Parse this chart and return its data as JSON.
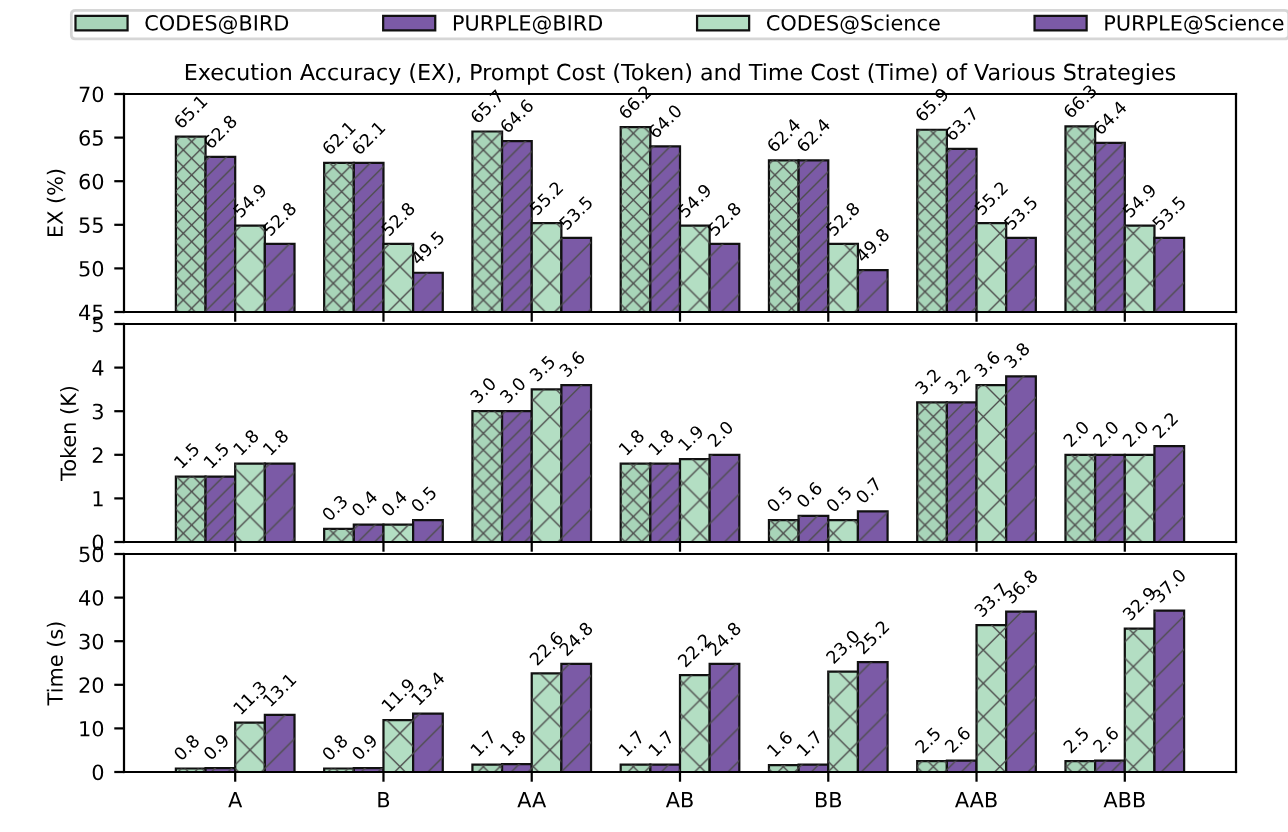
{
  "chart_data": [
    {
      "type": "bar",
      "title": "Execution Accuracy (EX), Prompt Cost (Token) and Time Cost (Time) of Various Strategies",
      "ylabel": "EX (%)",
      "categories": [
        null,
        null,
        null,
        null,
        null,
        null,
        null
      ],
      "ylim": [
        45,
        70
      ],
      "yticks": [
        45,
        50,
        55,
        60,
        65,
        70
      ],
      "tick_labels": "y",
      "legend": "top",
      "grid": false,
      "series": [
        {
          "name": "CODES@BIRD",
          "color": "#a8d5b9",
          "values": [
            65.1,
            62.1,
            65.7,
            66.2,
            62.4,
            65.9,
            66.3
          ],
          "value_labels": [
            "65.1",
            "62.1",
            "65.7",
            "66.2",
            "62.4",
            "65.9",
            "66.3"
          ]
        },
        {
          "name": "PURPLE@BIRD",
          "color": "#7b5aa6",
          "values": [
            62.8,
            62.1,
            64.6,
            64.0,
            62.4,
            63.7,
            64.4
          ],
          "value_labels": [
            "62.8",
            "62.1",
            "64.6",
            "64.0",
            "62.4",
            "63.7",
            "64.4"
          ]
        },
        {
          "name": "CODES@Science",
          "color": "#b3dec3",
          "values": [
            54.9,
            52.8,
            55.2,
            54.9,
            52.8,
            55.2,
            54.9
          ],
          "value_labels": [
            "54.9",
            "52.8",
            "55.2",
            "54.9",
            "52.8",
            "55.2",
            "54.9"
          ]
        },
        {
          "name": "PURPLE@Science",
          "color": "#7b5aa6",
          "values": [
            52.8,
            49.5,
            53.5,
            52.8,
            49.8,
            53.5,
            53.5
          ],
          "value_labels": [
            "52.8",
            "49.5",
            "53.5",
            "52.8",
            "49.8",
            "53.5",
            "53.5"
          ]
        }
      ]
    },
    {
      "type": "bar",
      "ylabel": "Token (K)",
      "categories": [
        null,
        null,
        null,
        null,
        null,
        null,
        null
      ],
      "ylim": [
        0,
        5
      ],
      "yticks": [
        0,
        1,
        2,
        3,
        4,
        5
      ],
      "tick_labels": "y",
      "grid": false,
      "series": [
        {
          "color": "#a8d5b9",
          "values": [
            1.5,
            0.3,
            3.0,
            1.8,
            0.5,
            3.2,
            2.0
          ],
          "value_labels": [
            "1.5",
            "0.3",
            "3.0",
            "1.8",
            "0.5",
            "3.2",
            "2.0"
          ]
        },
        {
          "color": "#7b5aa6",
          "values": [
            1.5,
            0.4,
            3.0,
            1.8,
            0.6,
            3.2,
            2.0
          ],
          "value_labels": [
            "1.5",
            "0.4",
            "3.0",
            "1.8",
            "0.6",
            "3.2",
            "2.0"
          ]
        },
        {
          "color": "#b3dec3",
          "values": [
            1.8,
            0.4,
            3.5,
            1.9,
            0.5,
            3.6,
            2.0
          ],
          "value_labels": [
            "1.8",
            "0.4",
            "3.5",
            "1.9",
            "0.5",
            "3.6",
            "2.0"
          ]
        },
        {
          "color": "#7b5aa6",
          "values": [
            1.8,
            0.5,
            3.6,
            2.0,
            0.7,
            3.8,
            2.2
          ],
          "value_labels": [
            "1.8",
            "0.5",
            "3.6",
            "2.0",
            "0.7",
            "3.8",
            "2.2"
          ]
        }
      ]
    },
    {
      "type": "bar",
      "ylabel": "Time (s)",
      "categories": [
        "A",
        "B",
        "AA",
        "AB",
        "BB",
        "AAB",
        "ABB"
      ],
      "ylim": [
        0,
        50
      ],
      "yticks": [
        0,
        10,
        20,
        30,
        40,
        50
      ],
      "grid": false,
      "series": [
        {
          "color": "#a8d5b9",
          "values": [
            0.8,
            0.8,
            1.7,
            1.7,
            1.6,
            2.5,
            2.5
          ],
          "value_labels": [
            "0.8",
            "0.8",
            "1.7",
            "1.7",
            "1.6",
            "2.5",
            "2.5"
          ]
        },
        {
          "color": "#7b5aa6",
          "values": [
            0.9,
            0.9,
            1.8,
            1.7,
            1.7,
            2.6,
            2.6
          ],
          "value_labels": [
            "0.9",
            "0.9",
            "1.8",
            "1.7",
            "1.7",
            "2.6",
            "2.6"
          ]
        },
        {
          "color": "#b3dec3",
          "values": [
            11.3,
            11.9,
            22.6,
            22.2,
            23.0,
            33.7,
            32.9
          ],
          "value_labels": [
            "11.3",
            "11.9",
            "22.6",
            "22.2",
            "23.0",
            "33.7",
            "32.9"
          ]
        },
        {
          "color": "#7b5aa6",
          "values": [
            13.1,
            13.4,
            24.8,
            24.8,
            25.2,
            36.8,
            37.0
          ],
          "value_labels": [
            "13.1",
            "13.4",
            "24.8",
            "24.8",
            "25.2",
            "36.8",
            "37.0"
          ]
        }
      ]
    }
  ]
}
